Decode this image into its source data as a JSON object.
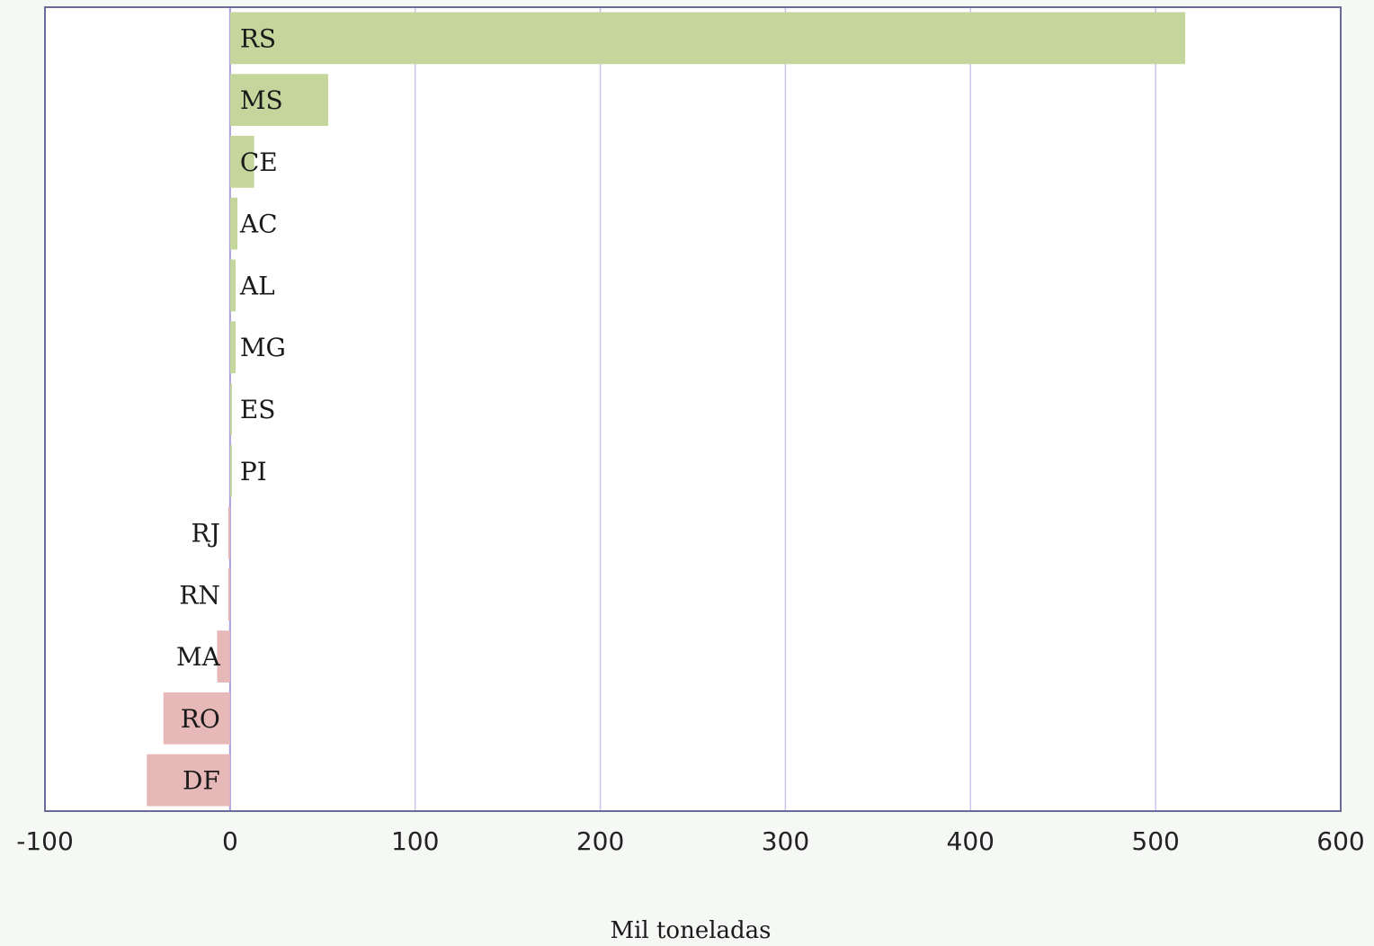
{
  "chart_data": {
    "type": "bar",
    "orientation": "horizontal",
    "title": "",
    "xlabel": "Mil toneladas",
    "ylabel": "",
    "xlim": [
      -100,
      600
    ],
    "xticks": [
      -100,
      0,
      100,
      200,
      300,
      400,
      500,
      600
    ],
    "xtick_labels": [
      "-100",
      "0",
      "100",
      "200",
      "300",
      "400",
      "500",
      "600"
    ],
    "grid": "vertical",
    "legend": "none",
    "categories": [
      "RS",
      "MS",
      "CE",
      "AC",
      "AL",
      "MG",
      "ES",
      "PI",
      "RJ",
      "RN",
      "MA",
      "RO",
      "DF"
    ],
    "values": [
      516,
      53,
      13,
      4,
      3,
      3,
      1,
      1,
      -1,
      -1,
      -7,
      -36,
      -45
    ],
    "colors": {
      "positive": "#c5d69d",
      "negative": "#e6b9b8",
      "grid": "#c8c4ec",
      "frame": "#6b6b9a",
      "plot_background": "#ffffff"
    }
  }
}
